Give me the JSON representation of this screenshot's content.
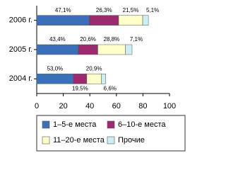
{
  "chart_data": {
    "type": "stacked-barh",
    "categories": [
      "2004 г.",
      "2005 г.",
      "2006 г."
    ],
    "series": [
      {
        "name": "1–5-е места",
        "color": "#3a70b8",
        "values": [
          27.6,
          31.2,
          39.6
        ],
        "value_labels": [
          "53,0%",
          "43,4%",
          "47,1%"
        ]
      },
      {
        "name": "6–10-е места",
        "color": "#9a2b6e",
        "values": [
          10.1,
          14.8,
          22.1
        ],
        "value_labels": [
          "19,5%",
          "20,6%",
          "26,3%"
        ]
      },
      {
        "name": "11–20-е места",
        "color": "#ffffcc",
        "values": [
          10.9,
          20.7,
          18.1
        ],
        "value_labels": [
          "20,9%",
          "28,8%",
          "21,5%"
        ]
      },
      {
        "name": "Прочие",
        "color": "#cdeef2",
        "values": [
          3.4,
          5.1,
          4.3
        ],
        "value_labels": [
          "6,6%",
          "7,1%",
          "5,1%"
        ]
      }
    ],
    "xlim": [
      0,
      100
    ],
    "xticks": [
      0,
      20,
      40,
      60,
      80,
      100
    ],
    "grid": false
  }
}
